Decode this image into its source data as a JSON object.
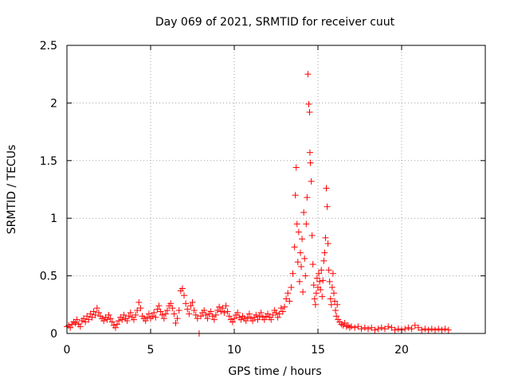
{
  "chart_data": {
    "type": "scatter",
    "title": "Day 069 of 2021, SRMTID for receiver cuut",
    "xlabel": "GPS time / hours",
    "ylabel": "SRMTID / TECUs",
    "xlim": [
      0,
      25
    ],
    "ylim": [
      0,
      2.5
    ],
    "xticks": [
      0,
      5,
      10,
      15,
      20
    ],
    "xtick_labels": [
      "0",
      "5",
      "10",
      "15",
      "20"
    ],
    "yticks": [
      0,
      0.5,
      1,
      1.5,
      2,
      2.5
    ],
    "ytick_labels": [
      "0",
      "0.5",
      "1",
      "1.5",
      "2",
      "2.5"
    ],
    "grid": true,
    "marker": "+",
    "color": "#ff0000",
    "series": [
      {
        "name": "SRMTID",
        "points": [
          [
            0.0,
            0.06
          ],
          [
            0.1,
            0.07
          ],
          [
            0.2,
            0.05
          ],
          [
            0.3,
            0.08
          ],
          [
            0.4,
            0.1
          ],
          [
            0.5,
            0.09
          ],
          [
            0.6,
            0.12
          ],
          [
            0.7,
            0.08
          ],
          [
            0.8,
            0.06
          ],
          [
            0.9,
            0.11
          ],
          [
            1.0,
            0.13
          ],
          [
            1.1,
            0.1
          ],
          [
            1.2,
            0.15
          ],
          [
            1.3,
            0.12
          ],
          [
            1.4,
            0.17
          ],
          [
            1.5,
            0.14
          ],
          [
            1.6,
            0.19
          ],
          [
            1.7,
            0.16
          ],
          [
            1.8,
            0.22
          ],
          [
            1.9,
            0.18
          ],
          [
            2.0,
            0.15
          ],
          [
            2.1,
            0.13
          ],
          [
            2.2,
            0.11
          ],
          [
            2.3,
            0.14
          ],
          [
            2.4,
            0.12
          ],
          [
            2.5,
            0.16
          ],
          [
            2.6,
            0.13
          ],
          [
            2.7,
            0.1
          ],
          [
            2.8,
            0.07
          ],
          [
            2.9,
            0.05
          ],
          [
            3.0,
            0.08
          ],
          [
            3.1,
            0.11
          ],
          [
            3.2,
            0.14
          ],
          [
            3.3,
            0.12
          ],
          [
            3.4,
            0.16
          ],
          [
            3.5,
            0.13
          ],
          [
            3.6,
            0.11
          ],
          [
            3.7,
            0.15
          ],
          [
            3.8,
            0.18
          ],
          [
            3.9,
            0.14
          ],
          [
            4.0,
            0.12
          ],
          [
            4.1,
            0.16
          ],
          [
            4.2,
            0.2
          ],
          [
            4.3,
            0.27
          ],
          [
            4.4,
            0.22
          ],
          [
            4.5,
            0.15
          ],
          [
            4.6,
            0.13
          ],
          [
            4.7,
            0.11
          ],
          [
            4.8,
            0.14
          ],
          [
            4.9,
            0.17
          ],
          [
            5.0,
            0.13
          ],
          [
            5.1,
            0.15
          ],
          [
            5.2,
            0.18
          ],
          [
            5.3,
            0.14
          ],
          [
            5.4,
            0.21
          ],
          [
            5.5,
            0.24
          ],
          [
            5.6,
            0.19
          ],
          [
            5.7,
            0.16
          ],
          [
            5.8,
            0.13
          ],
          [
            5.9,
            0.17
          ],
          [
            6.0,
            0.2
          ],
          [
            6.1,
            0.24
          ],
          [
            6.2,
            0.26
          ],
          [
            6.3,
            0.22
          ],
          [
            6.4,
            0.17
          ],
          [
            6.5,
            0.09
          ],
          [
            6.6,
            0.13
          ],
          [
            6.7,
            0.2
          ],
          [
            6.8,
            0.37
          ],
          [
            6.9,
            0.39
          ],
          [
            7.0,
            0.33
          ],
          [
            7.1,
            0.26
          ],
          [
            7.2,
            0.21
          ],
          [
            7.3,
            0.17
          ],
          [
            7.4,
            0.24
          ],
          [
            7.5,
            0.27
          ],
          [
            7.6,
            0.2
          ],
          [
            7.7,
            0.16
          ],
          [
            7.8,
            0.13
          ],
          [
            7.9,
            0.0
          ],
          [
            8.0,
            0.15
          ],
          [
            8.1,
            0.18
          ],
          [
            8.2,
            0.2
          ],
          [
            8.3,
            0.16
          ],
          [
            8.4,
            0.13
          ],
          [
            8.5,
            0.17
          ],
          [
            8.6,
            0.19
          ],
          [
            8.7,
            0.15
          ],
          [
            8.8,
            0.12
          ],
          [
            8.9,
            0.16
          ],
          [
            9.0,
            0.2
          ],
          [
            9.1,
            0.23
          ],
          [
            9.2,
            0.19
          ],
          [
            9.3,
            0.22
          ],
          [
            9.4,
            0.18
          ],
          [
            9.5,
            0.24
          ],
          [
            9.6,
            0.19
          ],
          [
            9.7,
            0.15
          ],
          [
            9.8,
            0.12
          ],
          [
            9.9,
            0.1
          ],
          [
            10.0,
            0.13
          ],
          [
            10.1,
            0.16
          ],
          [
            10.2,
            0.18
          ],
          [
            10.3,
            0.14
          ],
          [
            10.4,
            0.12
          ],
          [
            10.5,
            0.15
          ],
          [
            10.6,
            0.13
          ],
          [
            10.7,
            0.11
          ],
          [
            10.8,
            0.14
          ],
          [
            10.9,
            0.17
          ],
          [
            11.0,
            0.13
          ],
          [
            11.1,
            0.11
          ],
          [
            11.2,
            0.14
          ],
          [
            11.3,
            0.16
          ],
          [
            11.4,
            0.12
          ],
          [
            11.5,
            0.15
          ],
          [
            11.6,
            0.18
          ],
          [
            11.7,
            0.14
          ],
          [
            11.8,
            0.12
          ],
          [
            11.9,
            0.15
          ],
          [
            12.0,
            0.17
          ],
          [
            12.1,
            0.14
          ],
          [
            12.2,
            0.12
          ],
          [
            12.3,
            0.16
          ],
          [
            12.4,
            0.2
          ],
          [
            12.5,
            0.18
          ],
          [
            12.6,
            0.14
          ],
          [
            12.7,
            0.17
          ],
          [
            12.8,
            0.22
          ],
          [
            12.9,
            0.19
          ],
          [
            13.0,
            0.23
          ],
          [
            13.1,
            0.3
          ],
          [
            13.2,
            0.35
          ],
          [
            13.3,
            0.28
          ],
          [
            13.4,
            0.4
          ],
          [
            13.5,
            0.52
          ],
          [
            13.6,
            0.75
          ],
          [
            13.65,
            1.2
          ],
          [
            13.7,
            1.44
          ],
          [
            13.75,
            0.95
          ],
          [
            13.8,
            0.62
          ],
          [
            13.85,
            0.88
          ],
          [
            13.9,
            0.45
          ],
          [
            13.95,
            0.7
          ],
          [
            14.0,
            0.58
          ],
          [
            14.05,
            0.82
          ],
          [
            14.1,
            0.36
          ],
          [
            14.15,
            1.05
          ],
          [
            14.2,
            0.65
          ],
          [
            14.25,
            0.5
          ],
          [
            14.3,
            0.95
          ],
          [
            14.35,
            1.18
          ],
          [
            14.4,
            2.25
          ],
          [
            14.45,
            1.99
          ],
          [
            14.5,
            1.92
          ],
          [
            14.52,
            1.57
          ],
          [
            14.55,
            1.48
          ],
          [
            14.6,
            1.32
          ],
          [
            14.65,
            0.85
          ],
          [
            14.7,
            0.6
          ],
          [
            14.75,
            0.42
          ],
          [
            14.8,
            0.3
          ],
          [
            14.85,
            0.25
          ],
          [
            14.9,
            0.35
          ],
          [
            14.95,
            0.48
          ],
          [
            15.0,
            0.4
          ],
          [
            15.05,
            0.52
          ],
          [
            15.1,
            0.45
          ],
          [
            15.15,
            0.38
          ],
          [
            15.2,
            0.55
          ],
          [
            15.25,
            0.32
          ],
          [
            15.3,
            0.46
          ],
          [
            15.35,
            0.63
          ],
          [
            15.4,
            0.7
          ],
          [
            15.45,
            0.83
          ],
          [
            15.5,
            1.26
          ],
          [
            15.55,
            1.1
          ],
          [
            15.6,
            0.78
          ],
          [
            15.65,
            0.55
          ],
          [
            15.7,
            0.45
          ],
          [
            15.75,
            0.3
          ],
          [
            15.8,
            0.25
          ],
          [
            15.85,
            0.4
          ],
          [
            15.9,
            0.52
          ],
          [
            15.95,
            0.35
          ],
          [
            16.0,
            0.28
          ],
          [
            16.05,
            0.2
          ],
          [
            16.1,
            0.15
          ],
          [
            16.15,
            0.25
          ],
          [
            16.2,
            0.12
          ],
          [
            16.3,
            0.1
          ],
          [
            16.4,
            0.08
          ],
          [
            16.5,
            0.07
          ],
          [
            16.6,
            0.09
          ],
          [
            16.7,
            0.06
          ],
          [
            16.8,
            0.07
          ],
          [
            16.9,
            0.05
          ],
          [
            17.0,
            0.06
          ],
          [
            17.2,
            0.05
          ],
          [
            17.4,
            0.06
          ],
          [
            17.6,
            0.04
          ],
          [
            17.8,
            0.05
          ],
          [
            18.0,
            0.04
          ],
          [
            18.2,
            0.05
          ],
          [
            18.4,
            0.03
          ],
          [
            18.6,
            0.04
          ],
          [
            18.8,
            0.05
          ],
          [
            19.0,
            0.04
          ],
          [
            19.2,
            0.06
          ],
          [
            19.4,
            0.05
          ],
          [
            19.6,
            0.03
          ],
          [
            19.8,
            0.04
          ],
          [
            20.0,
            0.03
          ],
          [
            20.2,
            0.04
          ],
          [
            20.4,
            0.05
          ],
          [
            20.6,
            0.04
          ],
          [
            20.8,
            0.07
          ],
          [
            21.0,
            0.05
          ],
          [
            21.2,
            0.03
          ],
          [
            21.4,
            0.04
          ],
          [
            21.6,
            0.03
          ],
          [
            21.8,
            0.04
          ],
          [
            22.0,
            0.03
          ],
          [
            22.2,
            0.04
          ],
          [
            22.4,
            0.03
          ],
          [
            22.6,
            0.04
          ],
          [
            22.8,
            0.03
          ]
        ]
      }
    ]
  }
}
